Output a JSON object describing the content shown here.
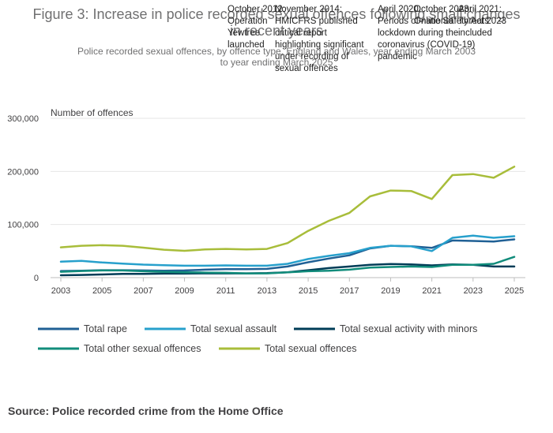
{
  "colors": {
    "total_rape": "#206095",
    "total_sexual_assault": "#27a0cc",
    "total_sexual_activity_with_minors": "#003c57",
    "total_other_sexual_offences": "#118c7b",
    "total_sexual_offences": "#a8bd3a",
    "grid": "#e6e6e6",
    "axis": "#bebebe"
  },
  "chart_data": {
    "type": "line",
    "title": "Figure 3: Increase in police recorded sexual offences following small changes in recent years",
    "subtitle": "Police recorded sexual offences, by offence type, England and Wales, year ending March 2003 to year ending March 2025",
    "ylabel": "Number of offences",
    "xlabel": "",
    "x": [
      2003,
      2004,
      2005,
      2006,
      2007,
      2008,
      2009,
      2010,
      2011,
      2012,
      2013,
      2014,
      2015,
      2016,
      2017,
      2018,
      2019,
      2020,
      2021,
      2022,
      2023,
      2024,
      2025
    ],
    "xticks": [
      "2003",
      "2005",
      "2007",
      "2009",
      "2011",
      "2013",
      "2015",
      "2017",
      "2019",
      "2021",
      "2023",
      "2025"
    ],
    "xlim": [
      2003,
      2025
    ],
    "ylim": [
      0,
      300000
    ],
    "yticks": [
      "0",
      "100,000",
      "200,000",
      "300,000"
    ],
    "grid": true,
    "legend_position": "bottom",
    "series": [
      {
        "name": "Total rape",
        "key": "total_rape",
        "values": [
          12500,
          13000,
          14000,
          14000,
          13500,
          13000,
          13500,
          15000,
          16000,
          16000,
          16500,
          21000,
          29000,
          36000,
          42000,
          55000,
          60000,
          59000,
          56000,
          70000,
          69000,
          68000,
          72000
        ]
      },
      {
        "name": "Total sexual assault",
        "key": "total_sexual_assault",
        "values": [
          30000,
          31500,
          28500,
          26500,
          24500,
          23500,
          22500,
          22500,
          23000,
          22500,
          22500,
          26000,
          35000,
          41000,
          46000,
          56000,
          60000,
          59000,
          50000,
          75000,
          79000,
          75000,
          78000
        ]
      },
      {
        "name": "Total sexual activity with minors",
        "key": "total_sexual_activity_with_minors",
        "values": [
          4500,
          5000,
          6000,
          7000,
          7000,
          7500,
          7500,
          8000,
          8000,
          8000,
          8500,
          10000,
          14000,
          18000,
          21000,
          24000,
          25500,
          25000,
          23000,
          25000,
          24000,
          21000,
          21000
        ]
      },
      {
        "name": "Total other sexual offences",
        "key": "total_other_sexual_offences",
        "values": [
          11000,
          12500,
          13500,
          13500,
          12000,
          11000,
          10000,
          9500,
          9000,
          8000,
          8000,
          10000,
          12000,
          13000,
          15000,
          19000,
          20000,
          21000,
          20000,
          24000,
          24000,
          26000,
          39000
        ]
      },
      {
        "name": "Total sexual offences",
        "key": "total_sexual_offences",
        "values": [
          57000,
          60000,
          61000,
          60000,
          56500,
          52500,
          50500,
          53000,
          54000,
          53000,
          54000,
          65000,
          88000,
          107000,
          122000,
          153000,
          164000,
          163000,
          148000,
          193000,
          195000,
          188000,
          209000
        ]
      }
    ],
    "annotations": [
      {
        "lines": [
          "October 2012:",
          "Operation",
          "Yewtree",
          "launched"
        ]
      },
      {
        "lines": [
          "November 2014:",
          "HMICFRS published",
          "critical report",
          "highlighting significant",
          "under recording of",
          "sexual offences"
        ]
      },
      {
        "lines": [
          "April 2020:",
          "Periods of national",
          "lockdown during the",
          "coronavirus (COVID-19)",
          "pandemic"
        ]
      },
      {
        "lines": [
          "October 2023:",
          "Online Safety Act 2023"
        ]
      },
      {
        "lines": [
          "April 2021:",
          "Threats",
          "included"
        ]
      }
    ]
  },
  "source": "Source: Police recorded crime from the Home Office"
}
